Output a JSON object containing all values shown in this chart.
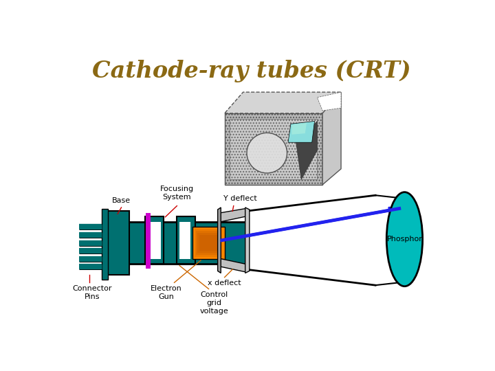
{
  "title": "Cathode-ray tubes (CRT)",
  "title_color": "#8B6914",
  "title_fontsize": 24,
  "bg_color": "#FFFFFF",
  "labels": {
    "focusing_system": "Focusing\nSystem",
    "y_deflect": "Y deflect",
    "base": "Base",
    "phosphor": "Phosphor",
    "connector_pins": "Connector\nPins",
    "x_deflect": "x deflect",
    "electron_gun": "Electron\nGun",
    "control_grid": "Control\ngrid\nvoltage"
  },
  "teal_color": "#007070",
  "cyan_color": "#00BBBB",
  "magenta_color": "#CC00CC",
  "blue_color": "#2222EE",
  "orange_color": "#CC6600",
  "red_color": "#CC0000",
  "dark_red": "#AA0000",
  "gray_color": "#888888",
  "black_color": "#000000",
  "white_color": "#FFFFFF"
}
